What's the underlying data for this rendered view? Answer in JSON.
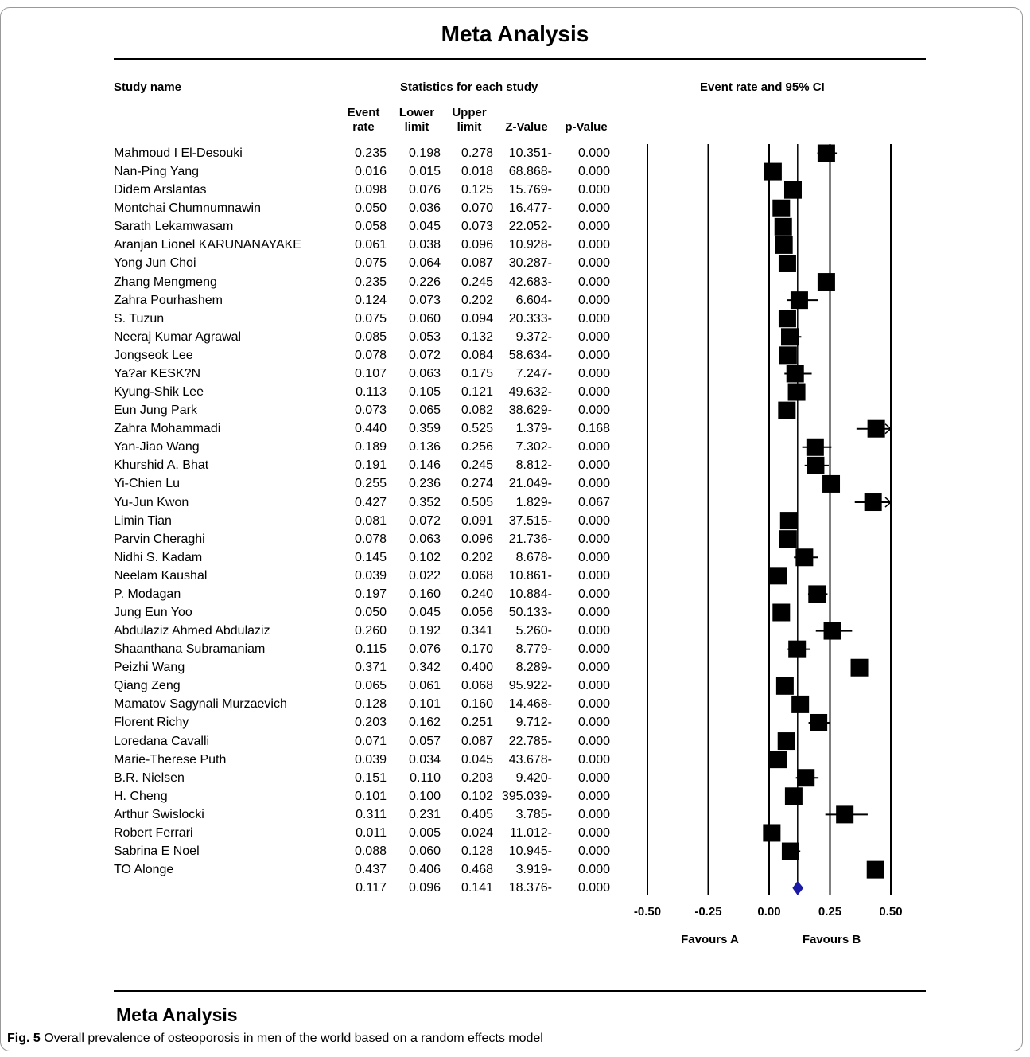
{
  "title": "Meta Analysis",
  "headers": {
    "study": "Study name",
    "stats": "Statistics for each study",
    "plot": "Event rate and 95% CI"
  },
  "columns": {
    "rate_1": "Event",
    "rate_2": "rate",
    "low_1": "Lower",
    "low_2": "limit",
    "up_1": "Upper",
    "up_2": "limit",
    "z": "Z-Value",
    "p": "p-Value"
  },
  "favours": {
    "a": "Favours A",
    "b": "Favours B"
  },
  "bottom_title": "Meta Analysis",
  "caption": {
    "label": "Fig. 5",
    "text": "Overall prevalence of osteoporosis in men of the world based on a random effects model"
  },
  "chart_data": {
    "type": "forest",
    "xlim": [
      -0.5,
      0.5
    ],
    "xticks": [
      "-0.50",
      "-0.25",
      "0.00",
      "0.25",
      "0.50"
    ],
    "rows": [
      {
        "name": "Mahmoud I El-Desouki",
        "rate": "0.235",
        "lower": "0.198",
        "upper": "0.278",
        "z": "10.351-",
        "p": "0.000"
      },
      {
        "name": "Nan-Ping Yang",
        "rate": "0.016",
        "lower": "0.015",
        "upper": "0.018",
        "z": "68.868-",
        "p": "0.000"
      },
      {
        "name": "Didem Arslantas",
        "rate": "0.098",
        "lower": "0.076",
        "upper": "0.125",
        "z": "15.769-",
        "p": "0.000"
      },
      {
        "name": "Montchai Chumnumnawin",
        "rate": "0.050",
        "lower": "0.036",
        "upper": "0.070",
        "z": "16.477-",
        "p": "0.000"
      },
      {
        "name": "Sarath Lekamwasam",
        "rate": "0.058",
        "lower": "0.045",
        "upper": "0.073",
        "z": "22.052-",
        "p": "0.000"
      },
      {
        "name": "Aranjan Lionel KARUNANAYAKE",
        "rate": "0.061",
        "lower": "0.038",
        "upper": "0.096",
        "z": "10.928-",
        "p": "0.000"
      },
      {
        "name": "Yong Jun Choi",
        "rate": "0.075",
        "lower": "0.064",
        "upper": "0.087",
        "z": "30.287-",
        "p": "0.000"
      },
      {
        "name": "Zhang Mengmeng",
        "rate": "0.235",
        "lower": "0.226",
        "upper": "0.245",
        "z": "42.683-",
        "p": "0.000"
      },
      {
        "name": "Zahra Pourhashem",
        "rate": "0.124",
        "lower": "0.073",
        "upper": "0.202",
        "z": "6.604-",
        "p": "0.000"
      },
      {
        "name": "S. Tuzun",
        "rate": "0.075",
        "lower": "0.060",
        "upper": "0.094",
        "z": "20.333-",
        "p": "0.000"
      },
      {
        "name": "Neeraj Kumar Agrawal",
        "rate": "0.085",
        "lower": "0.053",
        "upper": "0.132",
        "z": "9.372-",
        "p": "0.000"
      },
      {
        "name": "Jongseok Lee",
        "rate": "0.078",
        "lower": "0.072",
        "upper": "0.084",
        "z": "58.634-",
        "p": "0.000"
      },
      {
        "name": "Ya?ar KESK?N",
        "rate": "0.107",
        "lower": "0.063",
        "upper": "0.175",
        "z": "7.247-",
        "p": "0.000"
      },
      {
        "name": "Kyung-Shik Lee",
        "rate": "0.113",
        "lower": "0.105",
        "upper": "0.121",
        "z": "49.632-",
        "p": "0.000"
      },
      {
        "name": "Eun Jung Park",
        "rate": "0.073",
        "lower": "0.065",
        "upper": "0.082",
        "z": "38.629-",
        "p": "0.000"
      },
      {
        "name": "Zahra Mohammadi",
        "rate": "0.440",
        "lower": "0.359",
        "upper": "0.525",
        "z": "1.379-",
        "p": "0.168"
      },
      {
        "name": "Yan-Jiao Wang",
        "rate": "0.189",
        "lower": "0.136",
        "upper": "0.256",
        "z": "7.302-",
        "p": "0.000"
      },
      {
        "name": "Khurshid A. Bhat",
        "rate": "0.191",
        "lower": "0.146",
        "upper": "0.245",
        "z": "8.812-",
        "p": "0.000"
      },
      {
        "name": "Yi-Chien Lu",
        "rate": "0.255",
        "lower": "0.236",
        "upper": "0.274",
        "z": "21.049-",
        "p": "0.000"
      },
      {
        "name": "Yu-Jun Kwon",
        "rate": "0.427",
        "lower": "0.352",
        "upper": "0.505",
        "z": "1.829-",
        "p": "0.067"
      },
      {
        "name": "Limin Tian",
        "rate": "0.081",
        "lower": "0.072",
        "upper": "0.091",
        "z": "37.515-",
        "p": "0.000"
      },
      {
        "name": "Parvin Cheraghi",
        "rate": "0.078",
        "lower": "0.063",
        "upper": "0.096",
        "z": "21.736-",
        "p": "0.000"
      },
      {
        "name": "Nidhi S. Kadam",
        "rate": "0.145",
        "lower": "0.102",
        "upper": "0.202",
        "z": "8.678-",
        "p": "0.000"
      },
      {
        "name": "Neelam Kaushal",
        "rate": "0.039",
        "lower": "0.022",
        "upper": "0.068",
        "z": "10.861-",
        "p": "0.000"
      },
      {
        "name": "P. Modagan",
        "rate": "0.197",
        "lower": "0.160",
        "upper": "0.240",
        "z": "10.884-",
        "p": "0.000"
      },
      {
        "name": "Jung Eun Yoo",
        "rate": "0.050",
        "lower": "0.045",
        "upper": "0.056",
        "z": "50.133-",
        "p": "0.000"
      },
      {
        "name": "Abdulaziz Ahmed Abdulaziz",
        "rate": "0.260",
        "lower": "0.192",
        "upper": "0.341",
        "z": "5.260-",
        "p": "0.000"
      },
      {
        "name": "Shaanthana Subramaniam",
        "rate": "0.115",
        "lower": "0.076",
        "upper": "0.170",
        "z": "8.779-",
        "p": "0.000"
      },
      {
        "name": "Peizhi Wang",
        "rate": "0.371",
        "lower": "0.342",
        "upper": "0.400",
        "z": "8.289-",
        "p": "0.000"
      },
      {
        "name": "Qiang Zeng",
        "rate": "0.065",
        "lower": "0.061",
        "upper": "0.068",
        "z": "95.922-",
        "p": "0.000"
      },
      {
        "name": "Mamatov Sagynali Murzaevich",
        "rate": "0.128",
        "lower": "0.101",
        "upper": "0.160",
        "z": "14.468-",
        "p": "0.000"
      },
      {
        "name": "Florent Richy",
        "rate": "0.203",
        "lower": "0.162",
        "upper": "0.251",
        "z": "9.712-",
        "p": "0.000"
      },
      {
        "name": "Loredana Cavalli",
        "rate": "0.071",
        "lower": "0.057",
        "upper": "0.087",
        "z": "22.785-",
        "p": "0.000"
      },
      {
        "name": "Marie-Therese Puth",
        "rate": "0.039",
        "lower": "0.034",
        "upper": "0.045",
        "z": "43.678-",
        "p": "0.000"
      },
      {
        "name": "B.R. Nielsen",
        "rate": "0.151",
        "lower": "0.110",
        "upper": "0.203",
        "z": "9.420-",
        "p": "0.000"
      },
      {
        "name": "H. Cheng",
        "rate": "0.101",
        "lower": "0.100",
        "upper": "0.102",
        "z": "395.039-",
        "p": "0.000"
      },
      {
        "name": "Arthur Swislocki",
        "rate": "0.311",
        "lower": "0.231",
        "upper": "0.405",
        "z": "3.785-",
        "p": "0.000"
      },
      {
        "name": "Robert Ferrari",
        "rate": "0.011",
        "lower": "0.005",
        "upper": "0.024",
        "z": "11.012-",
        "p": "0.000"
      },
      {
        "name": "Sabrina E Noel",
        "rate": "0.088",
        "lower": "0.060",
        "upper": "0.128",
        "z": "10.945-",
        "p": "0.000"
      },
      {
        "name": "TO Alonge",
        "rate": "0.437",
        "lower": "0.406",
        "upper": "0.468",
        "z": "3.919-",
        "p": "0.000"
      }
    ],
    "pooled": {
      "rate": "0.117",
      "lower": "0.096",
      "upper": "0.141",
      "z": "18.376-",
      "p": "0.000"
    },
    "colors": {
      "marker": "#000000",
      "diamond": "#1a1aa6"
    }
  }
}
